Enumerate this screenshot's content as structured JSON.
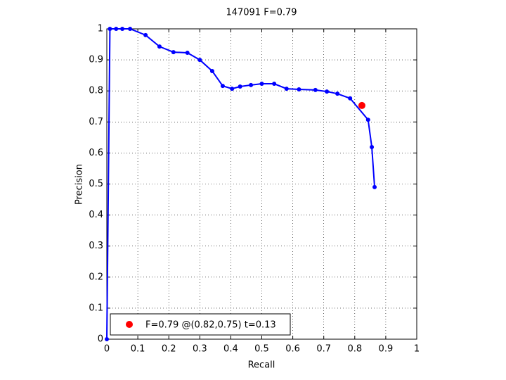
{
  "chart_data": {
    "type": "line",
    "title": "147091 F=0.79",
    "xlabel": "Recall",
    "ylabel": "Precision",
    "xlim": [
      0,
      1
    ],
    "ylim": [
      0,
      1
    ],
    "xticks": [
      0,
      0.1,
      0.2,
      0.3,
      0.4,
      0.5,
      0.6,
      0.7,
      0.8,
      0.9,
      1
    ],
    "yticks": [
      0,
      0.1,
      0.2,
      0.3,
      0.4,
      0.5,
      0.6,
      0.7,
      0.8,
      0.9,
      1
    ],
    "grid": true,
    "legend": "lower left",
    "series": [
      {
        "type": "line",
        "color": "#0000ff",
        "x": [
          0,
          0.01,
          0.03,
          0.05,
          0.075,
          0.125,
          0.17,
          0.215,
          0.26,
          0.3,
          0.34,
          0.374,
          0.404,
          0.43,
          0.465,
          0.5,
          0.54,
          0.58,
          0.62,
          0.673,
          0.71,
          0.744,
          0.785,
          0.843,
          0.855,
          0.864
        ],
        "values": [
          0,
          1,
          1,
          1,
          1,
          0.98,
          0.943,
          0.925,
          0.923,
          0.9,
          0.864,
          0.816,
          0.807,
          0.814,
          0.819,
          0.823,
          0.823,
          0.807,
          0.805,
          0.803,
          0.798,
          0.791,
          0.776,
          0.707,
          0.619,
          0.49
        ]
      },
      {
        "type": "scatter",
        "name": "F=0.79 @(0.82,0.75) t=0.13",
        "color": "#ff0000",
        "x": [
          0.823
        ],
        "values": [
          0.753
        ]
      }
    ]
  }
}
